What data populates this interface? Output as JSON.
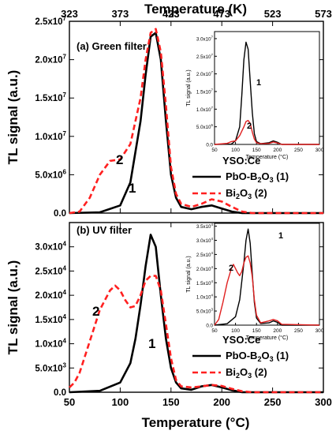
{
  "figure": {
    "top_axis_label": "Temperature (K)",
    "top_ticks": [
      "323",
      "373",
      "423",
      "473",
      "523",
      "573"
    ],
    "bottom_axis_label": "Temperature (°C)",
    "bottom_ticks": [
      "50",
      "100",
      "150",
      "200",
      "250",
      "300"
    ],
    "legend": {
      "sample": "YSO:Ce",
      "entries": [
        {
          "label": "PbO-B2O3 (1)",
          "style": "solid"
        },
        {
          "label": "Bi2O3 (2)",
          "style": "dashed"
        }
      ]
    }
  },
  "colors": {
    "solid": "#000000",
    "dashed": "#ff2020",
    "inset_red": "#e02020"
  },
  "chart_data": [
    {
      "type": "line",
      "panel": "(a) Green filter",
      "ylabel": "TL signal (a.u.)",
      "xlabel_top": "Temperature (K)",
      "xlim": [
        50,
        300
      ],
      "ylim": [
        0,
        25000000
      ],
      "y_ticks": [
        "0.0",
        "5.0x10^6",
        "1.0x10^7",
        "1.5x10^7",
        "2.0x10^7",
        "2.5x10^7"
      ],
      "annotations": [
        "1",
        "2"
      ],
      "series": [
        {
          "name": "PbO-B2O3 (1)",
          "x": [
            50,
            80,
            100,
            110,
            120,
            125,
            130,
            135,
            140,
            145,
            150,
            155,
            160,
            170,
            180,
            190,
            200,
            210,
            220,
            230,
            300
          ],
          "y": [
            0,
            100000,
            1000000,
            4000000,
            12000000,
            18000000,
            23000000,
            23500000,
            20000000,
            12000000,
            5000000,
            2000000,
            800000,
            500000,
            800000,
            1000000,
            600000,
            200000,
            0,
            0,
            0
          ]
        },
        {
          "name": "Bi2O3 (2)",
          "x": [
            50,
            60,
            70,
            80,
            90,
            100,
            110,
            120,
            125,
            130,
            135,
            140,
            145,
            150,
            155,
            160,
            170,
            180,
            190,
            200,
            210,
            220,
            230,
            300
          ],
          "y": [
            0,
            200000,
            2000000,
            5000000,
            6800000,
            7000000,
            9000000,
            15000000,
            20000000,
            23500000,
            24000000,
            21000000,
            14000000,
            6000000,
            2500000,
            1200000,
            800000,
            1200000,
            1800000,
            1500000,
            800000,
            200000,
            0,
            0
          ]
        }
      ]
    },
    {
      "type": "line",
      "panel": "(b) UV filter",
      "ylabel": "TL signal (a.u.)",
      "xlabel": "Temperature (°C)",
      "xlim": [
        50,
        300
      ],
      "ylim": [
        0,
        35000
      ],
      "y_ticks": [
        "0.0",
        "5.0x10^3",
        "1.0x10^4",
        "1.5x10^4",
        "2.0x10^4",
        "2.5x10^4",
        "3.0x10^4"
      ],
      "annotations": [
        "1",
        "2"
      ],
      "series": [
        {
          "name": "PbO-B2O3 (1)",
          "x": [
            50,
            80,
            100,
            110,
            115,
            120,
            125,
            130,
            135,
            140,
            145,
            150,
            155,
            160,
            170,
            180,
            190,
            200,
            210,
            220,
            230,
            300
          ],
          "y": [
            0,
            300,
            2000,
            6000,
            11000,
            18000,
            26000,
            32500,
            30000,
            20000,
            11000,
            5000,
            2000,
            800,
            500,
            1200,
            1500,
            1000,
            400,
            0,
            0,
            0
          ]
        },
        {
          "name": "Bi2O3 (2)",
          "x": [
            50,
            55,
            60,
            70,
            80,
            90,
            95,
            100,
            105,
            110,
            115,
            120,
            125,
            130,
            135,
            140,
            145,
            150,
            155,
            160,
            170,
            180,
            190,
            200,
            210,
            220,
            230,
            300
          ],
          "y": [
            1000,
            2000,
            4000,
            10500,
            17000,
            21000,
            22000,
            21000,
            19000,
            17500,
            17800,
            20000,
            23000,
            24000,
            24000,
            21000,
            14000,
            7000,
            2500,
            1200,
            1000,
            1200,
            1500,
            1300,
            700,
            200,
            0,
            0
          ]
        }
      ]
    },
    {
      "type": "line",
      "panel": "inset (a)",
      "ylabel": "TL signal (a.u.)",
      "xlabel": "Temperature (°C)",
      "xlim": [
        50,
        300
      ],
      "ylim": [
        0,
        32000000
      ],
      "x_ticks": [
        "50",
        "100",
        "150",
        "200",
        "250",
        "300"
      ],
      "y_ticks": [
        "0.0",
        "5.0x10^6",
        "1.0x10^7",
        "1.5x10^7",
        "2.0x10^7",
        "2.5x10^7",
        "3.0x10^7"
      ],
      "annotations": [
        "1",
        "2"
      ],
      "series": [
        {
          "name": "1",
          "x": [
            50,
            90,
            100,
            110,
            115,
            120,
            125,
            130,
            135,
            140,
            145,
            150,
            160,
            180,
            190,
            200,
            210,
            300
          ],
          "y": [
            0,
            100000,
            1000000,
            5000000,
            14000000,
            24000000,
            29000000,
            27000000,
            18000000,
            9000000,
            3000000,
            800000,
            200000,
            500000,
            1000000,
            600000,
            0,
            0
          ]
        },
        {
          "name": "2",
          "x": [
            50,
            80,
            90,
            100,
            110,
            120,
            125,
            130,
            135,
            140,
            145,
            150,
            160,
            180,
            190,
            200,
            210,
            300
          ],
          "y": [
            0,
            300000,
            800000,
            1000000,
            2500000,
            5000000,
            6500000,
            6800000,
            6000000,
            3500000,
            1500000,
            500000,
            200000,
            300000,
            700000,
            400000,
            0,
            0
          ]
        }
      ]
    },
    {
      "type": "line",
      "panel": "inset (b)",
      "ylabel": "TL signal (a.u.)",
      "xlabel": "Temperature (°C)",
      "xlim": [
        50,
        300
      ],
      "ylim": [
        0,
        36000
      ],
      "x_ticks": [
        "50",
        "100",
        "150",
        "200",
        "250",
        "300"
      ],
      "y_ticks": [
        "0.0",
        "5.0x10^3",
        "1.0x10^4",
        "1.5x10^4",
        "2.0x10^4",
        "2.5x10^4",
        "3.0x10^4",
        "3.5x10^4"
      ],
      "annotations": [
        "1",
        "2"
      ],
      "series": [
        {
          "name": "1",
          "x": [
            50,
            80,
            100,
            110,
            120,
            125,
            130,
            135,
            140,
            145,
            150,
            160,
            180,
            190,
            200,
            210,
            300
          ],
          "y": [
            0,
            500,
            3000,
            9000,
            22000,
            30000,
            34000,
            29000,
            18000,
            8000,
            2500,
            600,
            800,
            1500,
            1000,
            0,
            0
          ]
        },
        {
          "name": "2",
          "x": [
            50,
            60,
            70,
            80,
            90,
            95,
            100,
            105,
            110,
            115,
            120,
            125,
            130,
            135,
            140,
            145,
            150,
            160,
            180,
            190,
            200,
            210,
            300
          ],
          "y": [
            0,
            2000,
            8000,
            15000,
            20000,
            21500,
            20000,
            18500,
            17500,
            19000,
            22000,
            24000,
            24500,
            22000,
            17000,
            9000,
            3500,
            800,
            1500,
            2000,
            1500,
            300,
            0
          ]
        }
      ]
    }
  ]
}
